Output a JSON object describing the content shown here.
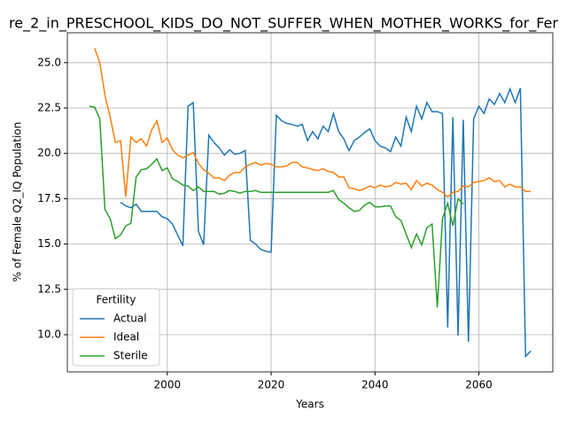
{
  "chart_data": {
    "type": "line",
    "title": "re_2_in_PRESCHOOL_KIDS_DO_NOT_SUFFER_WHEN_MOTHER_WORKS_for_Fer",
    "xlabel": "Years",
    "ylabel": "% of Female Q2_IQ Population",
    "x": [
      1985,
      1986,
      1987,
      1988,
      1989,
      1990,
      1991,
      1992,
      1993,
      1994,
      1995,
      1996,
      1997,
      1998,
      1999,
      2000,
      2001,
      2002,
      2003,
      2004,
      2005,
      2006,
      2007,
      2008,
      2009,
      2010,
      2011,
      2012,
      2013,
      2014,
      2015,
      2016,
      2017,
      2018,
      2019,
      2020,
      2021,
      2022,
      2023,
      2024,
      2025,
      2026,
      2027,
      2028,
      2029,
      2030,
      2031,
      2032,
      2033,
      2034,
      2035,
      2036,
      2037,
      2038,
      2039,
      2040,
      2041,
      2042,
      2043,
      2044,
      2045,
      2046,
      2047,
      2048,
      2049,
      2050,
      2051,
      2052,
      2053,
      2054,
      2055,
      2056,
      2057,
      2058,
      2059,
      2060,
      2061,
      2062,
      2063,
      2064,
      2065,
      2066,
      2067,
      2068,
      2069,
      2070
    ],
    "series": [
      {
        "name": "Actual",
        "color": "#1f77b4",
        "values": [
          null,
          null,
          null,
          null,
          null,
          null,
          17.3,
          17.1,
          17.0,
          17.2,
          16.8,
          16.8,
          16.8,
          16.8,
          16.5,
          16.4,
          16.1,
          15.5,
          14.9,
          22.6,
          22.8,
          15.7,
          14.95,
          21.0,
          20.6,
          20.3,
          19.9,
          20.2,
          19.95,
          20.0,
          20.15,
          15.2,
          15.0,
          14.7,
          14.6,
          14.55,
          22.1,
          21.8,
          21.65,
          21.6,
          21.5,
          21.6,
          20.7,
          21.2,
          20.8,
          21.5,
          21.2,
          22.2,
          21.2,
          20.8,
          20.15,
          20.7,
          20.9,
          21.15,
          21.35,
          20.7,
          20.4,
          20.3,
          20.1,
          20.9,
          20.4,
          22.0,
          21.2,
          22.6,
          21.9,
          22.8,
          22.3,
          22.3,
          22.2,
          10.4,
          22.0,
          9.95,
          21.85,
          9.6,
          21.9,
          22.6,
          22.2,
          23.0,
          22.7,
          23.3,
          22.8,
          23.55,
          22.8,
          23.6,
          8.8,
          9.1
        ]
      },
      {
        "name": "Ideal",
        "color": "#ff7f0e",
        "values": [
          null,
          25.8,
          25.0,
          23.2,
          22.0,
          20.6,
          20.7,
          17.6,
          20.9,
          20.6,
          20.8,
          20.4,
          21.3,
          21.8,
          20.6,
          20.85,
          20.2,
          19.9,
          19.75,
          19.9,
          20.05,
          19.45,
          19.1,
          18.9,
          18.65,
          18.65,
          18.5,
          18.8,
          18.95,
          18.95,
          19.25,
          19.4,
          19.5,
          19.35,
          19.45,
          19.4,
          19.25,
          19.25,
          19.3,
          19.5,
          19.5,
          19.25,
          19.2,
          19.1,
          19.05,
          19.15,
          19.0,
          18.95,
          18.7,
          18.7,
          18.1,
          18.05,
          17.95,
          18.05,
          18.2,
          18.1,
          18.25,
          18.15,
          18.2,
          18.4,
          18.3,
          18.35,
          18.0,
          18.5,
          18.2,
          18.35,
          18.25,
          18.0,
          17.85,
          17.6,
          17.85,
          17.9,
          18.2,
          18.15,
          18.4,
          18.45,
          18.5,
          18.65,
          18.45,
          18.5,
          18.15,
          18.3,
          18.15,
          18.15,
          17.9,
          17.9
        ]
      },
      {
        "name": "Sterile",
        "color": "#2ca02c",
        "values": [
          22.6,
          22.55,
          21.9,
          16.9,
          16.4,
          15.3,
          15.5,
          16.0,
          16.15,
          18.7,
          19.1,
          19.15,
          19.4,
          19.7,
          19.05,
          19.2,
          18.6,
          18.45,
          18.25,
          18.2,
          17.95,
          18.15,
          17.9,
          17.9,
          17.9,
          17.75,
          17.8,
          17.95,
          17.9,
          17.8,
          17.9,
          17.9,
          17.95,
          17.85,
          17.85,
          17.85,
          17.85,
          17.85,
          17.85,
          17.85,
          17.85,
          17.85,
          17.85,
          17.85,
          17.85,
          17.85,
          17.85,
          17.95,
          17.45,
          17.25,
          17.0,
          16.8,
          16.85,
          17.15,
          17.3,
          17.05,
          17.05,
          17.1,
          17.1,
          16.5,
          16.3,
          15.55,
          14.8,
          15.55,
          14.95,
          15.9,
          16.1,
          11.5,
          16.4,
          17.25,
          16.0,
          17.5,
          17.2,
          null,
          null,
          null,
          null,
          null,
          null,
          null,
          null,
          null,
          null,
          null,
          null,
          null
        ]
      }
    ],
    "xlim": [
      1980.75,
      2074.25
    ],
    "xticks": [
      2000,
      2020,
      2040,
      2060
    ],
    "ylim": [
      7.95,
      26.65
    ],
    "yticks": [
      {
        "value": 10,
        "label": "10.0"
      },
      {
        "value": 12.5,
        "label": "12.5"
      },
      {
        "value": 15,
        "label": "15.0"
      },
      {
        "value": 17.5,
        "label": "17.5"
      },
      {
        "value": 20,
        "label": "20.0"
      },
      {
        "value": 22.5,
        "label": "22.5"
      },
      {
        "value": 25,
        "label": "25.0"
      }
    ],
    "grid": true,
    "legend": {
      "title": "Fertility",
      "position": "lower left"
    }
  }
}
